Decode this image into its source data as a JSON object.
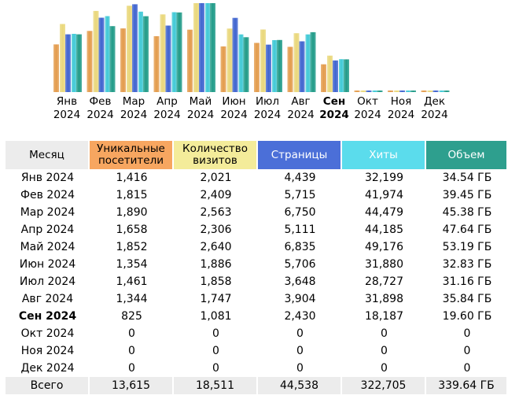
{
  "colors": {
    "unique": "#e39b4b",
    "visits": "#e9d77a",
    "pages": "#3e63cf",
    "hits": "#3fc9d6",
    "bandwidth": "#1f9a87"
  },
  "chart_data": {
    "type": "bar",
    "title": "",
    "categories": [
      "Янв 2024",
      "Фев 2024",
      "Мар 2024",
      "Апр 2024",
      "Май 2024",
      "Июн 2024",
      "Июл 2024",
      "Авг 2024",
      "Сен 2024",
      "Окт 2024",
      "Ноя 2024",
      "Дек 2024"
    ],
    "series": [
      {
        "name": "Уникальные посетители",
        "values": [
          1416,
          1815,
          1890,
          1658,
          1852,
          1354,
          1461,
          1344,
          825,
          0,
          0,
          0
        ]
      },
      {
        "name": "Количество визитов",
        "values": [
          2021,
          2409,
          2563,
          2306,
          2640,
          1886,
          1858,
          1747,
          1081,
          0,
          0,
          0
        ]
      },
      {
        "name": "Страницы",
        "values": [
          4439,
          5715,
          6750,
          5111,
          6835,
          5706,
          3648,
          3904,
          2430,
          0,
          0,
          0
        ]
      },
      {
        "name": "Хиты",
        "values": [
          32199,
          41974,
          44479,
          44185,
          49176,
          31880,
          28727,
          31898,
          18187,
          0,
          0,
          0
        ]
      },
      {
        "name": "Объем (ГБ)",
        "values": [
          34.54,
          39.45,
          45.38,
          47.64,
          53.19,
          32.83,
          31.16,
          35.84,
          19.6,
          0,
          0,
          0
        ]
      }
    ],
    "current_month": "Сен 2024"
  },
  "months": [
    {
      "m": "Янв",
      "y": "2024",
      "label": "Янв 2024",
      "unique": "1,416",
      "visits": "2,021",
      "pages": "4,439",
      "hits": "32,199",
      "bandwidth": "34.54 ГБ"
    },
    {
      "m": "Фев",
      "y": "2024",
      "label": "Фев 2024",
      "unique": "1,815",
      "visits": "2,409",
      "pages": "5,715",
      "hits": "41,974",
      "bandwidth": "39.45 ГБ"
    },
    {
      "m": "Мар",
      "y": "2024",
      "label": "Мар 2024",
      "unique": "1,890",
      "visits": "2,563",
      "pages": "6,750",
      "hits": "44,479",
      "bandwidth": "45.38 ГБ"
    },
    {
      "m": "Апр",
      "y": "2024",
      "label": "Апр 2024",
      "unique": "1,658",
      "visits": "2,306",
      "pages": "5,111",
      "hits": "44,185",
      "bandwidth": "47.64 ГБ"
    },
    {
      "m": "Май",
      "y": "2024",
      "label": "Май 2024",
      "unique": "1,852",
      "visits": "2,640",
      "pages": "6,835",
      "hits": "49,176",
      "bandwidth": "53.19 ГБ"
    },
    {
      "m": "Июн",
      "y": "2024",
      "label": "Июн 2024",
      "unique": "1,354",
      "visits": "1,886",
      "pages": "5,706",
      "hits": "31,880",
      "bandwidth": "32.83 ГБ"
    },
    {
      "m": "Июл",
      "y": "2024",
      "label": "Июл 2024",
      "unique": "1,461",
      "visits": "1,858",
      "pages": "3,648",
      "hits": "28,727",
      "bandwidth": "31.16 ГБ"
    },
    {
      "m": "Авг",
      "y": "2024",
      "label": "Авг 2024",
      "unique": "1,344",
      "visits": "1,747",
      "pages": "3,904",
      "hits": "31,898",
      "bandwidth": "35.84 ГБ"
    },
    {
      "m": "Сен",
      "y": "2024",
      "label": "Сен 2024",
      "unique": "825",
      "visits": "1,081",
      "pages": "2,430",
      "hits": "18,187",
      "bandwidth": "19.60 ГБ"
    },
    {
      "m": "Окт",
      "y": "2024",
      "label": "Окт 2024",
      "unique": "0",
      "visits": "0",
      "pages": "0",
      "hits": "0",
      "bandwidth": "0"
    },
    {
      "m": "Ноя",
      "y": "2024",
      "label": "Ноя 2024",
      "unique": "0",
      "visits": "0",
      "pages": "0",
      "hits": "0",
      "bandwidth": "0"
    },
    {
      "m": "Дек",
      "y": "2024",
      "label": "Дек 2024",
      "unique": "0",
      "visits": "0",
      "pages": "0",
      "hits": "0",
      "bandwidth": "0"
    }
  ],
  "table": {
    "headers": {
      "month": "Месяц",
      "unique": "Уникальные посетители",
      "visits": "Количество визитов",
      "pages": "Страницы",
      "hits": "Хиты",
      "bandwidth": "Объем"
    },
    "total": {
      "label": "Всего",
      "unique": "13,615",
      "visits": "18,511",
      "pages": "44,538",
      "hits": "322,705",
      "bandwidth": "339.64 ГБ"
    }
  }
}
